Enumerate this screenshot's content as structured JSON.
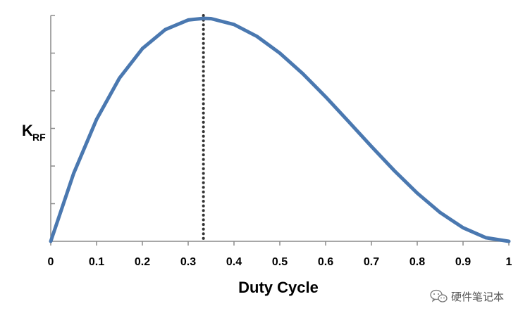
{
  "chart_data": {
    "type": "line",
    "xlabel": "Duty Cycle",
    "ylabel": "K",
    "ylabel_subscript": "RF",
    "x_ticks": [
      "0",
      "0.1",
      "0.2",
      "0.3",
      "0.4",
      "0.5",
      "0.6",
      "0.7",
      "0.8",
      "0.9",
      "1"
    ],
    "xlim": [
      0,
      1
    ],
    "ylim": [
      0,
      0.15
    ],
    "y_tick_count": 6,
    "y_tick_labels_shown": false,
    "grid": false,
    "legend": "none",
    "series": [
      {
        "color": "#4a78b0",
        "x": [
          0,
          0.05,
          0.1,
          0.15,
          0.2,
          0.25,
          0.3,
          0.3333,
          0.35,
          0.4,
          0.45,
          0.5,
          0.55,
          0.6,
          0.65,
          0.7,
          0.75,
          0.8,
          0.85,
          0.9,
          0.95,
          1
        ],
        "y": [
          0,
          0.0451,
          0.081,
          0.1084,
          0.128,
          0.1406,
          0.147,
          0.1481,
          0.1479,
          0.144,
          0.1361,
          0.125,
          0.1114,
          0.096,
          0.0796,
          0.063,
          0.0469,
          0.032,
          0.0191,
          0.009,
          0.0024,
          0
        ]
      }
    ],
    "annotations": [
      {
        "type": "vertical-dotted-line",
        "x": 0.3333,
        "color": "#333333"
      }
    ]
  },
  "watermark": {
    "text": "硬件笔记本",
    "icon": "wechat-icon"
  }
}
